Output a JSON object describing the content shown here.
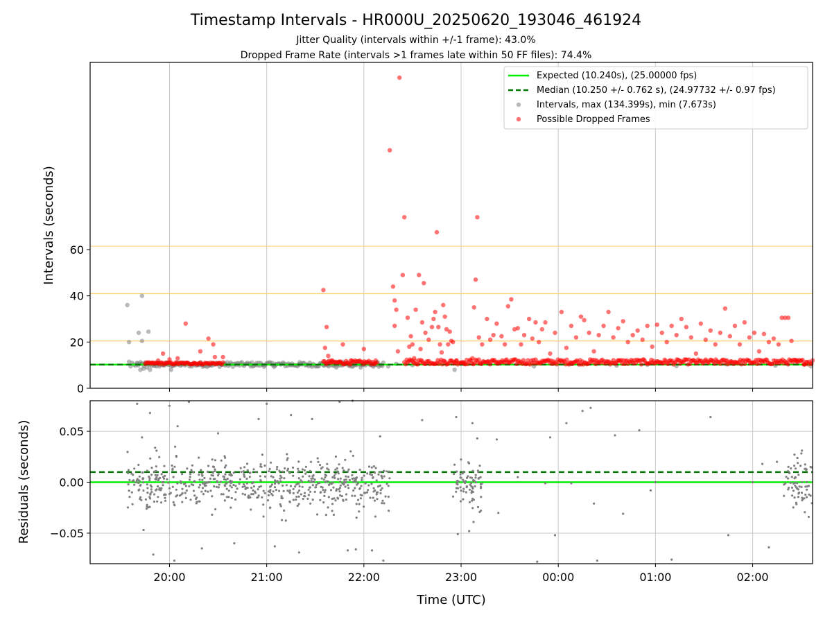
{
  "figure": {
    "title": "Timestamp Intervals - HR000U_20250620_193046_461924",
    "subtitle_1": "Jitter Quality (intervals within +/-1 frame): 43.0%",
    "subtitle_2": "Dropped Frame Rate (intervals >1 frames late within 50 FF files): 74.4%"
  },
  "colors": {
    "expected": "#00ee00",
    "median": "#007700",
    "intervals": "#808080",
    "dropped": "#ff0000",
    "threshold": "#ffd27a",
    "grid": "#c8c8c8"
  },
  "chart_data": [
    {
      "type": "scatter",
      "ylabel": "Intervals (seconds)",
      "xlim": [
        "19:11",
        "02:37"
      ],
      "ylim": [
        0,
        141
      ],
      "yticks": [
        0,
        20,
        40,
        60
      ],
      "grid": true,
      "legend_position": "top-right",
      "horizontal_lines": [
        {
          "name": "Expected (10.240s), (25.00000 fps)",
          "y": 10.24,
          "style": "solid",
          "color": "#00ee00"
        },
        {
          "name": "Median (10.250 +/- 0.762 s), (24.97732 +/- 0.97 fps)",
          "y": 10.25,
          "style": "dashed",
          "color": "#007700"
        }
      ],
      "threshold_lines": [
        20.48,
        40.96,
        61.44
      ],
      "series": [
        {
          "name": "Intervals, max (134.399s), min (7.673s)",
          "color": "#808080",
          "points": [
            [
              "19:34",
              36.0
            ],
            [
              "19:35",
              20.0
            ],
            [
              "19:35",
              11.5
            ],
            [
              "19:36",
              9.5
            ],
            [
              "19:37",
              11.0
            ],
            [
              "19:38",
              10.2
            ],
            [
              "19:39",
              9.8
            ],
            [
              "19:40",
              11.0
            ],
            [
              "19:41",
              24.0
            ],
            [
              "19:42",
              8.0
            ],
            [
              "19:43",
              40.0
            ],
            [
              "19:43",
              20.5
            ],
            [
              "19:44",
              8.5
            ],
            [
              "19:45",
              10.5
            ],
            [
              "19:46",
              9.0
            ],
            [
              "19:47",
              24.5
            ],
            [
              "19:48",
              8.0
            ],
            [
              "19:52",
              9.5
            ],
            [
              "19:56",
              10.3
            ],
            [
              "20:01",
              8.0
            ],
            [
              "20:34",
              10.8
            ],
            [
              "20:50",
              10.3
            ],
            [
              "21:05",
              10.5
            ],
            [
              "21:20",
              10.2
            ],
            [
              "21:35",
              10.6
            ],
            [
              "21:43",
              9.0
            ],
            [
              "21:47",
              11.5
            ],
            [
              "21:58",
              9.0
            ],
            [
              "22:08",
              10.2
            ],
            [
              "22:15",
              9.5
            ],
            [
              "22:20",
              10.6
            ],
            [
              "22:30",
              10.0
            ],
            [
              "22:56",
              8.0
            ],
            [
              "23:00",
              10.5
            ],
            [
              "23:45",
              9.5
            ],
            [
              "00:08",
              10.5
            ],
            [
              "00:36",
              9.8
            ],
            [
              "00:55",
              10.2
            ],
            [
              "01:13",
              9.6
            ],
            [
              "01:44",
              10.4
            ],
            [
              "02:14",
              9.8
            ],
            [
              "02:36",
              9.5
            ]
          ]
        },
        {
          "name": "Possible Dropped Frames",
          "color": "#ff0000",
          "points": [
            [
              "19:49",
              11.0
            ],
            [
              "19:53",
              12.0
            ],
            [
              "19:56",
              15.0
            ],
            [
              "20:00",
              12.5
            ],
            [
              "20:05",
              13.0
            ],
            [
              "20:10",
              28.0
            ],
            [
              "20:15",
              11.0
            ],
            [
              "20:19",
              16.0
            ],
            [
              "20:24",
              21.5
            ],
            [
              "20:27",
              19.0
            ],
            [
              "20:28",
              13.5
            ],
            [
              "20:33",
              13.5
            ],
            [
              "21:35",
              42.5
            ],
            [
              "21:36",
              17.5
            ],
            [
              "21:37",
              26.5
            ],
            [
              "21:38",
              14.0
            ],
            [
              "21:40",
              12.0
            ],
            [
              "21:45",
              11.5
            ],
            [
              "21:47",
              19.0
            ],
            [
              "21:52",
              12.0
            ],
            [
              "22:00",
              17.0
            ],
            [
              "22:07",
              11.0
            ],
            [
              "22:16",
              103.0
            ],
            [
              "22:18",
              44.0
            ],
            [
              "22:19",
              27.0
            ],
            [
              "22:19",
              38.0
            ],
            [
              "22:20",
              34.0
            ],
            [
              "22:21",
              16.0
            ],
            [
              "22:22",
              134.4
            ],
            [
              "22:24",
              49.0
            ],
            [
              "22:25",
              74.0
            ],
            [
              "22:27",
              30.5
            ],
            [
              "22:28",
              18.0
            ],
            [
              "22:29",
              22.5
            ],
            [
              "22:30",
              19.0
            ],
            [
              "22:31",
              13.0
            ],
            [
              "22:32",
              34.0
            ],
            [
              "22:34",
              49.0
            ],
            [
              "22:35",
              17.0
            ],
            [
              "22:36",
              28.5
            ],
            [
              "22:37",
              45.5
            ],
            [
              "22:38",
              24.0
            ],
            [
              "22:40",
              21.0
            ],
            [
              "22:42",
              26.5
            ],
            [
              "22:43",
              30.0
            ],
            [
              "22:44",
              33.0
            ],
            [
              "22:45",
              67.5
            ],
            [
              "22:46",
              26.5
            ],
            [
              "22:47",
              19.0
            ],
            [
              "22:48",
              15.5
            ],
            [
              "22:49",
              36.0
            ],
            [
              "22:50",
              31.0
            ],
            [
              "22:51",
              25.5
            ],
            [
              "22:52",
              19.0
            ],
            [
              "22:53",
              24.5
            ],
            [
              "22:54",
              20.5
            ],
            [
              "22:55",
              20.0
            ],
            [
              "22:57",
              12.0
            ],
            [
              "23:02",
              11.0
            ],
            [
              "23:07",
              13.0
            ],
            [
              "23:08",
              35.0
            ],
            [
              "23:09",
              47.0
            ],
            [
              "23:10",
              74.0
            ],
            [
              "23:11",
              22.0
            ],
            [
              "23:13",
              19.0
            ],
            [
              "23:16",
              30.0
            ],
            [
              "23:18",
              21.0
            ],
            [
              "23:20",
              23.0
            ],
            [
              "23:22",
              28.0
            ],
            [
              "23:25",
              22.5
            ],
            [
              "23:27",
              19.0
            ],
            [
              "23:29",
              35.5
            ],
            [
              "23:31",
              38.5
            ],
            [
              "23:33",
              25.5
            ],
            [
              "23:35",
              26.0
            ],
            [
              "23:37",
              19.0
            ],
            [
              "23:39",
              23.0
            ],
            [
              "23:42",
              30.0
            ],
            [
              "23:44",
              21.5
            ],
            [
              "23:46",
              28.5
            ],
            [
              "23:48",
              20.0
            ],
            [
              "23:50",
              25.5
            ],
            [
              "23:52",
              28.5
            ],
            [
              "23:55",
              15.0
            ],
            [
              "23:58",
              24.0
            ],
            [
              "00:02",
              33.0
            ],
            [
              "00:05",
              17.5
            ],
            [
              "00:08",
              27.0
            ],
            [
              "00:11",
              22.0
            ],
            [
              "00:14",
              31.0
            ],
            [
              "00:16",
              29.5
            ],
            [
              "00:19",
              24.0
            ],
            [
              "00:22",
              16.0
            ],
            [
              "00:25",
              23.0
            ],
            [
              "00:28",
              27.0
            ],
            [
              "00:31",
              33.0
            ],
            [
              "00:34",
              22.0
            ],
            [
              "00:37",
              26.0
            ],
            [
              "00:40",
              29.0
            ],
            [
              "00:43",
              20.0
            ],
            [
              "00:46",
              23.0
            ],
            [
              "00:49",
              25.0
            ],
            [
              "00:52",
              21.0
            ],
            [
              "00:55",
              27.0
            ],
            [
              "00:58",
              18.0
            ],
            [
              "01:01",
              27.5
            ],
            [
              "01:04",
              24.0
            ],
            [
              "01:07",
              20.0
            ],
            [
              "01:10",
              27.0
            ],
            [
              "01:13",
              23.0
            ],
            [
              "01:16",
              30.0
            ],
            [
              "01:19",
              26.5
            ],
            [
              "01:22",
              22.0
            ],
            [
              "01:25",
              15.0
            ],
            [
              "01:28",
              28.0
            ],
            [
              "01:31",
              21.0
            ],
            [
              "01:34",
              25.0
            ],
            [
              "01:37",
              19.0
            ],
            [
              "01:40",
              24.0
            ],
            [
              "01:43",
              34.5
            ],
            [
              "01:46",
              22.5
            ],
            [
              "01:49",
              27.0
            ],
            [
              "01:52",
              19.0
            ],
            [
              "01:55",
              28.5
            ],
            [
              "01:58",
              22.0
            ],
            [
              "02:01",
              24.0
            ],
            [
              "02:04",
              16.0
            ],
            [
              "02:07",
              23.5
            ],
            [
              "02:10",
              20.0
            ],
            [
              "02:13",
              21.5
            ],
            [
              "02:16",
              19.0
            ],
            [
              "02:18",
              30.5
            ],
            [
              "02:20",
              30.5
            ],
            [
              "02:22",
              30.5
            ],
            [
              "02:24",
              20.5
            ],
            [
              "02:27",
              11.5
            ],
            [
              "02:32",
              10.5
            ]
          ]
        }
      ],
      "dense_bands": [
        {
          "name": "Intervals, max (134.399s), min (7.673s)",
          "from": "19:40",
          "to": "22:12",
          "y_low": 9.3,
          "y_high": 11.3
        },
        {
          "name": "Possible Dropped Frames",
          "from": "19:45",
          "to": "20:33",
          "y_low": 10.3,
          "y_high": 11.2
        },
        {
          "name": "Possible Dropped Frames",
          "from": "21:35",
          "to": "22:08",
          "y_low": 10.3,
          "y_high": 12.0
        },
        {
          "name": "Possible Dropped Frames",
          "from": "22:25",
          "to": "02:37",
          "y_low": 10.3,
          "y_high": 12.5
        }
      ]
    },
    {
      "type": "scatter",
      "xlabel": "Time (UTC)",
      "ylabel": "Residuals (seconds)",
      "xlim": [
        "19:11",
        "02:37"
      ],
      "ylim": [
        -0.08,
        0.08
      ],
      "yticks": [
        0.05,
        0.0,
        -0.05
      ],
      "ytick_labels": [
        "0.05",
        "0.00",
        "−0.05"
      ],
      "xtick_values": [
        "20:00",
        "21:00",
        "22:00",
        "23:00",
        "00:00",
        "01:00",
        "02:00"
      ],
      "xticks": [
        "20:00",
        "21:00",
        "22:00",
        "23:00",
        "00:00",
        "01:00",
        "02:00"
      ],
      "grid": true,
      "horizontal_lines": [
        {
          "name": "Expected",
          "y": 0.0,
          "style": "solid",
          "color": "#00ee00"
        },
        {
          "name": "Median",
          "y": 0.01,
          "style": "dashed",
          "color": "#007700"
        }
      ],
      "clusters": [
        {
          "from": "19:34",
          "to": "22:16",
          "center": -0.003,
          "spread": 0.012,
          "count": 620
        },
        {
          "from": "22:55",
          "to": "23:13",
          "center": -0.002,
          "spread": 0.013,
          "count": 75
        },
        {
          "from": "02:19",
          "to": "02:37",
          "center": 0.0,
          "spread": 0.013,
          "count": 70
        }
      ],
      "outliers": [
        [
          "19:40",
          0.077
        ],
        [
          "19:43",
          0.044
        ],
        [
          "19:44",
          -0.047
        ],
        [
          "19:48",
          0.068
        ],
        [
          "19:50",
          -0.071
        ],
        [
          "19:52",
          0.031
        ],
        [
          "20:00",
          0.075
        ],
        [
          "20:03",
          -0.077
        ],
        [
          "20:05",
          0.055
        ],
        [
          "20:12",
          0.079
        ],
        [
          "20:20",
          -0.065
        ],
        [
          "20:30",
          0.048
        ],
        [
          "20:40",
          -0.06
        ],
        [
          "20:55",
          0.062
        ],
        [
          "21:00",
          0.077
        ],
        [
          "21:05",
          -0.063
        ],
        [
          "21:15",
          0.066
        ],
        [
          "21:20",
          -0.069
        ],
        [
          "21:28",
          0.062
        ],
        [
          "21:45",
          0.079
        ],
        [
          "21:50",
          -0.067
        ],
        [
          "21:53",
          0.08
        ],
        [
          "21:55",
          -0.066
        ],
        [
          "22:05",
          -0.067
        ],
        [
          "22:10",
          0.045
        ],
        [
          "22:12",
          -0.077
        ],
        [
          "22:36",
          0.061
        ],
        [
          "22:57",
          0.064
        ],
        [
          "22:58",
          -0.051
        ],
        [
          "23:05",
          -0.048
        ],
        [
          "23:07",
          0.058
        ],
        [
          "23:10",
          0.043
        ],
        [
          "23:22",
          0.042
        ],
        [
          "23:23",
          -0.03
        ],
        [
          "23:35",
          0.005
        ],
        [
          "23:47",
          -0.078
        ],
        [
          "23:52",
          -0.001
        ],
        [
          "23:55",
          0.044
        ],
        [
          "23:58",
          -0.052
        ],
        [
          "00:05",
          0.058
        ],
        [
          "00:08",
          -0.001
        ],
        [
          "00:15",
          0.07
        ],
        [
          "00:20",
          0.073
        ],
        [
          "00:22",
          -0.021
        ],
        [
          "00:24",
          -0.077
        ],
        [
          "00:35",
          0.046
        ],
        [
          "00:40",
          -0.031
        ],
        [
          "00:50",
          0.051
        ],
        [
          "00:57",
          -0.008
        ],
        [
          "01:00",
          -0.0
        ],
        [
          "01:10",
          -0.076
        ],
        [
          "01:34",
          0.064
        ],
        [
          "01:45",
          -0.052
        ],
        [
          "02:00",
          -0.0
        ],
        [
          "02:06",
          0.018
        ],
        [
          "02:10",
          -0.064
        ],
        [
          "02:15",
          0.02
        ]
      ]
    }
  ]
}
